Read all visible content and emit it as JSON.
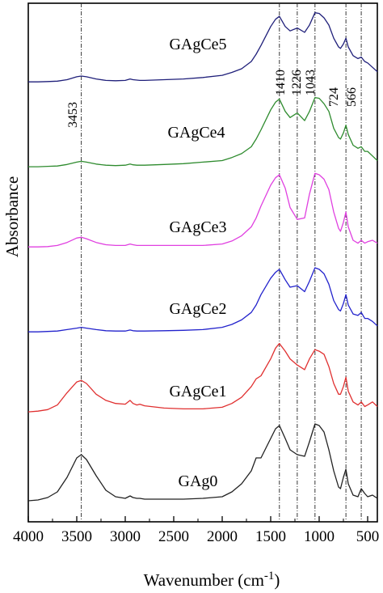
{
  "chart_data": {
    "type": "line",
    "title": "",
    "xlabel": "Wavenumber (cm",
    "xlabel_sup": "-1",
    "xlabel_close": ")",
    "ylabel": "Absorbance",
    "xlim": [
      4000,
      400
    ],
    "x_reversed": true,
    "y_ticks_shown": false,
    "grid": false,
    "legend": "inline labels above each curve",
    "x_ticks": [
      {
        "value": 4000,
        "label": "4000"
      },
      {
        "value": 3500,
        "label": "3500"
      },
      {
        "value": 3000,
        "label": "3000"
      },
      {
        "value": 2500,
        "label": "2500"
      },
      {
        "value": 2000,
        "label": "2000"
      },
      {
        "value": 1500,
        "label": "1500"
      },
      {
        "value": 1000,
        "label": "1000"
      },
      {
        "value": 500,
        "label": "500"
      }
    ],
    "reference_lines": [
      {
        "x": 3453,
        "label": "3453"
      },
      {
        "x": 1410,
        "label": "1410"
      },
      {
        "x": 1226,
        "label": "1226"
      },
      {
        "x": 1043,
        "label": "1043"
      },
      {
        "x": 724,
        "label": "724"
      },
      {
        "x": 566,
        "label": "566"
      }
    ],
    "series": [
      {
        "name": "GAgCe5",
        "color": "#1f1f7a",
        "offset": 5,
        "x": [
          4000,
          3900,
          3800,
          3700,
          3600,
          3500,
          3453,
          3400,
          3300,
          3200,
          3100,
          3000,
          2950,
          2920,
          2880,
          2850,
          2800,
          2600,
          2400,
          2200,
          2000,
          1900,
          1800,
          1700,
          1650,
          1600,
          1500,
          1450,
          1410,
          1350,
          1300,
          1226,
          1150,
          1100,
          1043,
          1000,
          950,
          900,
          850,
          800,
          780,
          750,
          724,
          700,
          650,
          600,
          566,
          530,
          500,
          450,
          400
        ],
        "y": [
          0.02,
          0.02,
          0.025,
          0.03,
          0.05,
          0.09,
          0.1,
          0.09,
          0.06,
          0.04,
          0.035,
          0.04,
          0.06,
          0.05,
          0.045,
          0.04,
          0.04,
          0.05,
          0.06,
          0.08,
          0.11,
          0.15,
          0.2,
          0.3,
          0.4,
          0.52,
          0.78,
          0.88,
          0.92,
          0.78,
          0.72,
          0.76,
          0.7,
          0.8,
          0.97,
          0.96,
          0.9,
          0.8,
          0.62,
          0.5,
          0.48,
          0.54,
          0.62,
          0.5,
          0.38,
          0.34,
          0.36,
          0.3,
          0.28,
          0.22,
          0.16
        ]
      },
      {
        "name": "GAgCe4",
        "color": "#2e8b2e",
        "offset": 4,
        "x": [
          4000,
          3900,
          3800,
          3700,
          3600,
          3500,
          3453,
          3400,
          3300,
          3200,
          3100,
          3000,
          2950,
          2920,
          2880,
          2850,
          2800,
          2600,
          2400,
          2200,
          2000,
          1900,
          1800,
          1700,
          1650,
          1600,
          1500,
          1450,
          1410,
          1350,
          1300,
          1226,
          1150,
          1100,
          1043,
          1000,
          950,
          900,
          850,
          800,
          780,
          750,
          724,
          700,
          650,
          600,
          566,
          530,
          500,
          450,
          400
        ],
        "y": [
          0.02,
          0.02,
          0.025,
          0.03,
          0.05,
          0.08,
          0.09,
          0.08,
          0.055,
          0.04,
          0.035,
          0.04,
          0.055,
          0.045,
          0.04,
          0.04,
          0.04,
          0.05,
          0.06,
          0.08,
          0.1,
          0.14,
          0.19,
          0.28,
          0.38,
          0.5,
          0.76,
          0.86,
          0.9,
          0.74,
          0.66,
          0.72,
          0.62,
          0.74,
          0.92,
          0.91,
          0.84,
          0.74,
          0.52,
          0.4,
          0.38,
          0.46,
          0.56,
          0.44,
          0.3,
          0.26,
          0.28,
          0.22,
          0.22,
          0.16,
          0.1
        ]
      },
      {
        "name": "GAgCe3",
        "color": "#e040e0",
        "offset": 3,
        "x": [
          4000,
          3900,
          3800,
          3700,
          3600,
          3500,
          3453,
          3400,
          3300,
          3200,
          3100,
          3000,
          2950,
          2920,
          2880,
          2850,
          2800,
          2600,
          2400,
          2200,
          2000,
          1900,
          1800,
          1700,
          1650,
          1600,
          1500,
          1450,
          1410,
          1350,
          1300,
          1226,
          1150,
          1100,
          1043,
          1000,
          950,
          900,
          850,
          800,
          780,
          750,
          724,
          700,
          650,
          600,
          566,
          530,
          500,
          450,
          400
        ],
        "y": [
          0.03,
          0.03,
          0.035,
          0.05,
          0.09,
          0.15,
          0.16,
          0.14,
          0.09,
          0.06,
          0.05,
          0.05,
          0.07,
          0.06,
          0.05,
          0.05,
          0.05,
          0.05,
          0.05,
          0.05,
          0.07,
          0.11,
          0.18,
          0.3,
          0.42,
          0.58,
          0.86,
          0.96,
          1.0,
          0.82,
          0.56,
          0.4,
          0.42,
          0.74,
          1.02,
          1.0,
          0.94,
          0.8,
          0.5,
          0.28,
          0.24,
          0.36,
          0.5,
          0.3,
          0.12,
          0.08,
          0.12,
          0.08,
          0.1,
          0.12,
          0.08
        ]
      },
      {
        "name": "GAgCe2",
        "color": "#2222cc",
        "offset": 2,
        "x": [
          4000,
          3900,
          3800,
          3700,
          3600,
          3500,
          3453,
          3400,
          3300,
          3200,
          3100,
          3000,
          2950,
          2920,
          2880,
          2850,
          2800,
          2600,
          2400,
          2200,
          2000,
          1900,
          1800,
          1700,
          1650,
          1600,
          1500,
          1450,
          1410,
          1350,
          1300,
          1226,
          1150,
          1100,
          1043,
          1000,
          950,
          900,
          850,
          800,
          780,
          750,
          724,
          700,
          650,
          600,
          566,
          530,
          500,
          450,
          400
        ],
        "y": [
          0.02,
          0.02,
          0.025,
          0.03,
          0.05,
          0.07,
          0.08,
          0.07,
          0.05,
          0.035,
          0.03,
          0.03,
          0.045,
          0.035,
          0.03,
          0.03,
          0.03,
          0.035,
          0.04,
          0.05,
          0.08,
          0.12,
          0.18,
          0.28,
          0.38,
          0.52,
          0.74,
          0.82,
          0.86,
          0.72,
          0.62,
          0.64,
          0.56,
          0.7,
          0.88,
          0.86,
          0.8,
          0.66,
          0.44,
          0.32,
          0.3,
          0.4,
          0.52,
          0.38,
          0.26,
          0.24,
          0.28,
          0.2,
          0.2,
          0.16,
          0.1
        ]
      },
      {
        "name": "GAgCe1",
        "color": "#e03030",
        "offset": 1,
        "x": [
          4000,
          3900,
          3800,
          3700,
          3600,
          3500,
          3453,
          3400,
          3300,
          3200,
          3100,
          3000,
          2950,
          2920,
          2880,
          2850,
          2800,
          2600,
          2400,
          2200,
          2000,
          1900,
          1800,
          1700,
          1650,
          1600,
          1500,
          1450,
          1410,
          1350,
          1300,
          1226,
          1150,
          1100,
          1043,
          1000,
          950,
          900,
          850,
          800,
          780,
          750,
          724,
          700,
          650,
          600,
          566,
          530,
          500,
          450,
          400
        ],
        "y": [
          0.03,
          0.04,
          0.06,
          0.12,
          0.28,
          0.42,
          0.44,
          0.4,
          0.26,
          0.18,
          0.14,
          0.13,
          0.18,
          0.14,
          0.12,
          0.13,
          0.11,
          0.08,
          0.07,
          0.07,
          0.09,
          0.14,
          0.22,
          0.36,
          0.46,
          0.5,
          0.72,
          0.86,
          0.92,
          0.82,
          0.72,
          0.64,
          0.58,
          0.72,
          0.84,
          0.82,
          0.78,
          0.62,
          0.4,
          0.26,
          0.26,
          0.36,
          0.48,
          0.3,
          0.16,
          0.12,
          0.16,
          0.1,
          0.12,
          0.16,
          0.1
        ]
      },
      {
        "name": "GAg0",
        "color": "#222222",
        "offset": 0,
        "x": [
          4000,
          3900,
          3800,
          3700,
          3600,
          3500,
          3453,
          3400,
          3300,
          3200,
          3100,
          3000,
          2950,
          2920,
          2880,
          2850,
          2800,
          2600,
          2400,
          2200,
          2000,
          1900,
          1800,
          1700,
          1650,
          1600,
          1500,
          1450,
          1410,
          1350,
          1300,
          1226,
          1150,
          1100,
          1043,
          1000,
          950,
          900,
          850,
          800,
          780,
          750,
          724,
          700,
          650,
          600,
          566,
          530,
          500,
          450,
          400
        ],
        "y": [
          0.03,
          0.04,
          0.07,
          0.14,
          0.32,
          0.56,
          0.6,
          0.54,
          0.34,
          0.16,
          0.08,
          0.06,
          0.09,
          0.07,
          0.06,
          0.06,
          0.05,
          0.05,
          0.05,
          0.06,
          0.08,
          0.14,
          0.24,
          0.4,
          0.56,
          0.56,
          0.8,
          0.92,
          0.96,
          0.8,
          0.66,
          0.6,
          0.58,
          0.76,
          0.98,
          0.96,
          0.88,
          0.66,
          0.4,
          0.2,
          0.18,
          0.32,
          0.42,
          0.24,
          0.1,
          0.08,
          0.18,
          0.12,
          0.08,
          0.1,
          0.06
        ]
      }
    ]
  }
}
